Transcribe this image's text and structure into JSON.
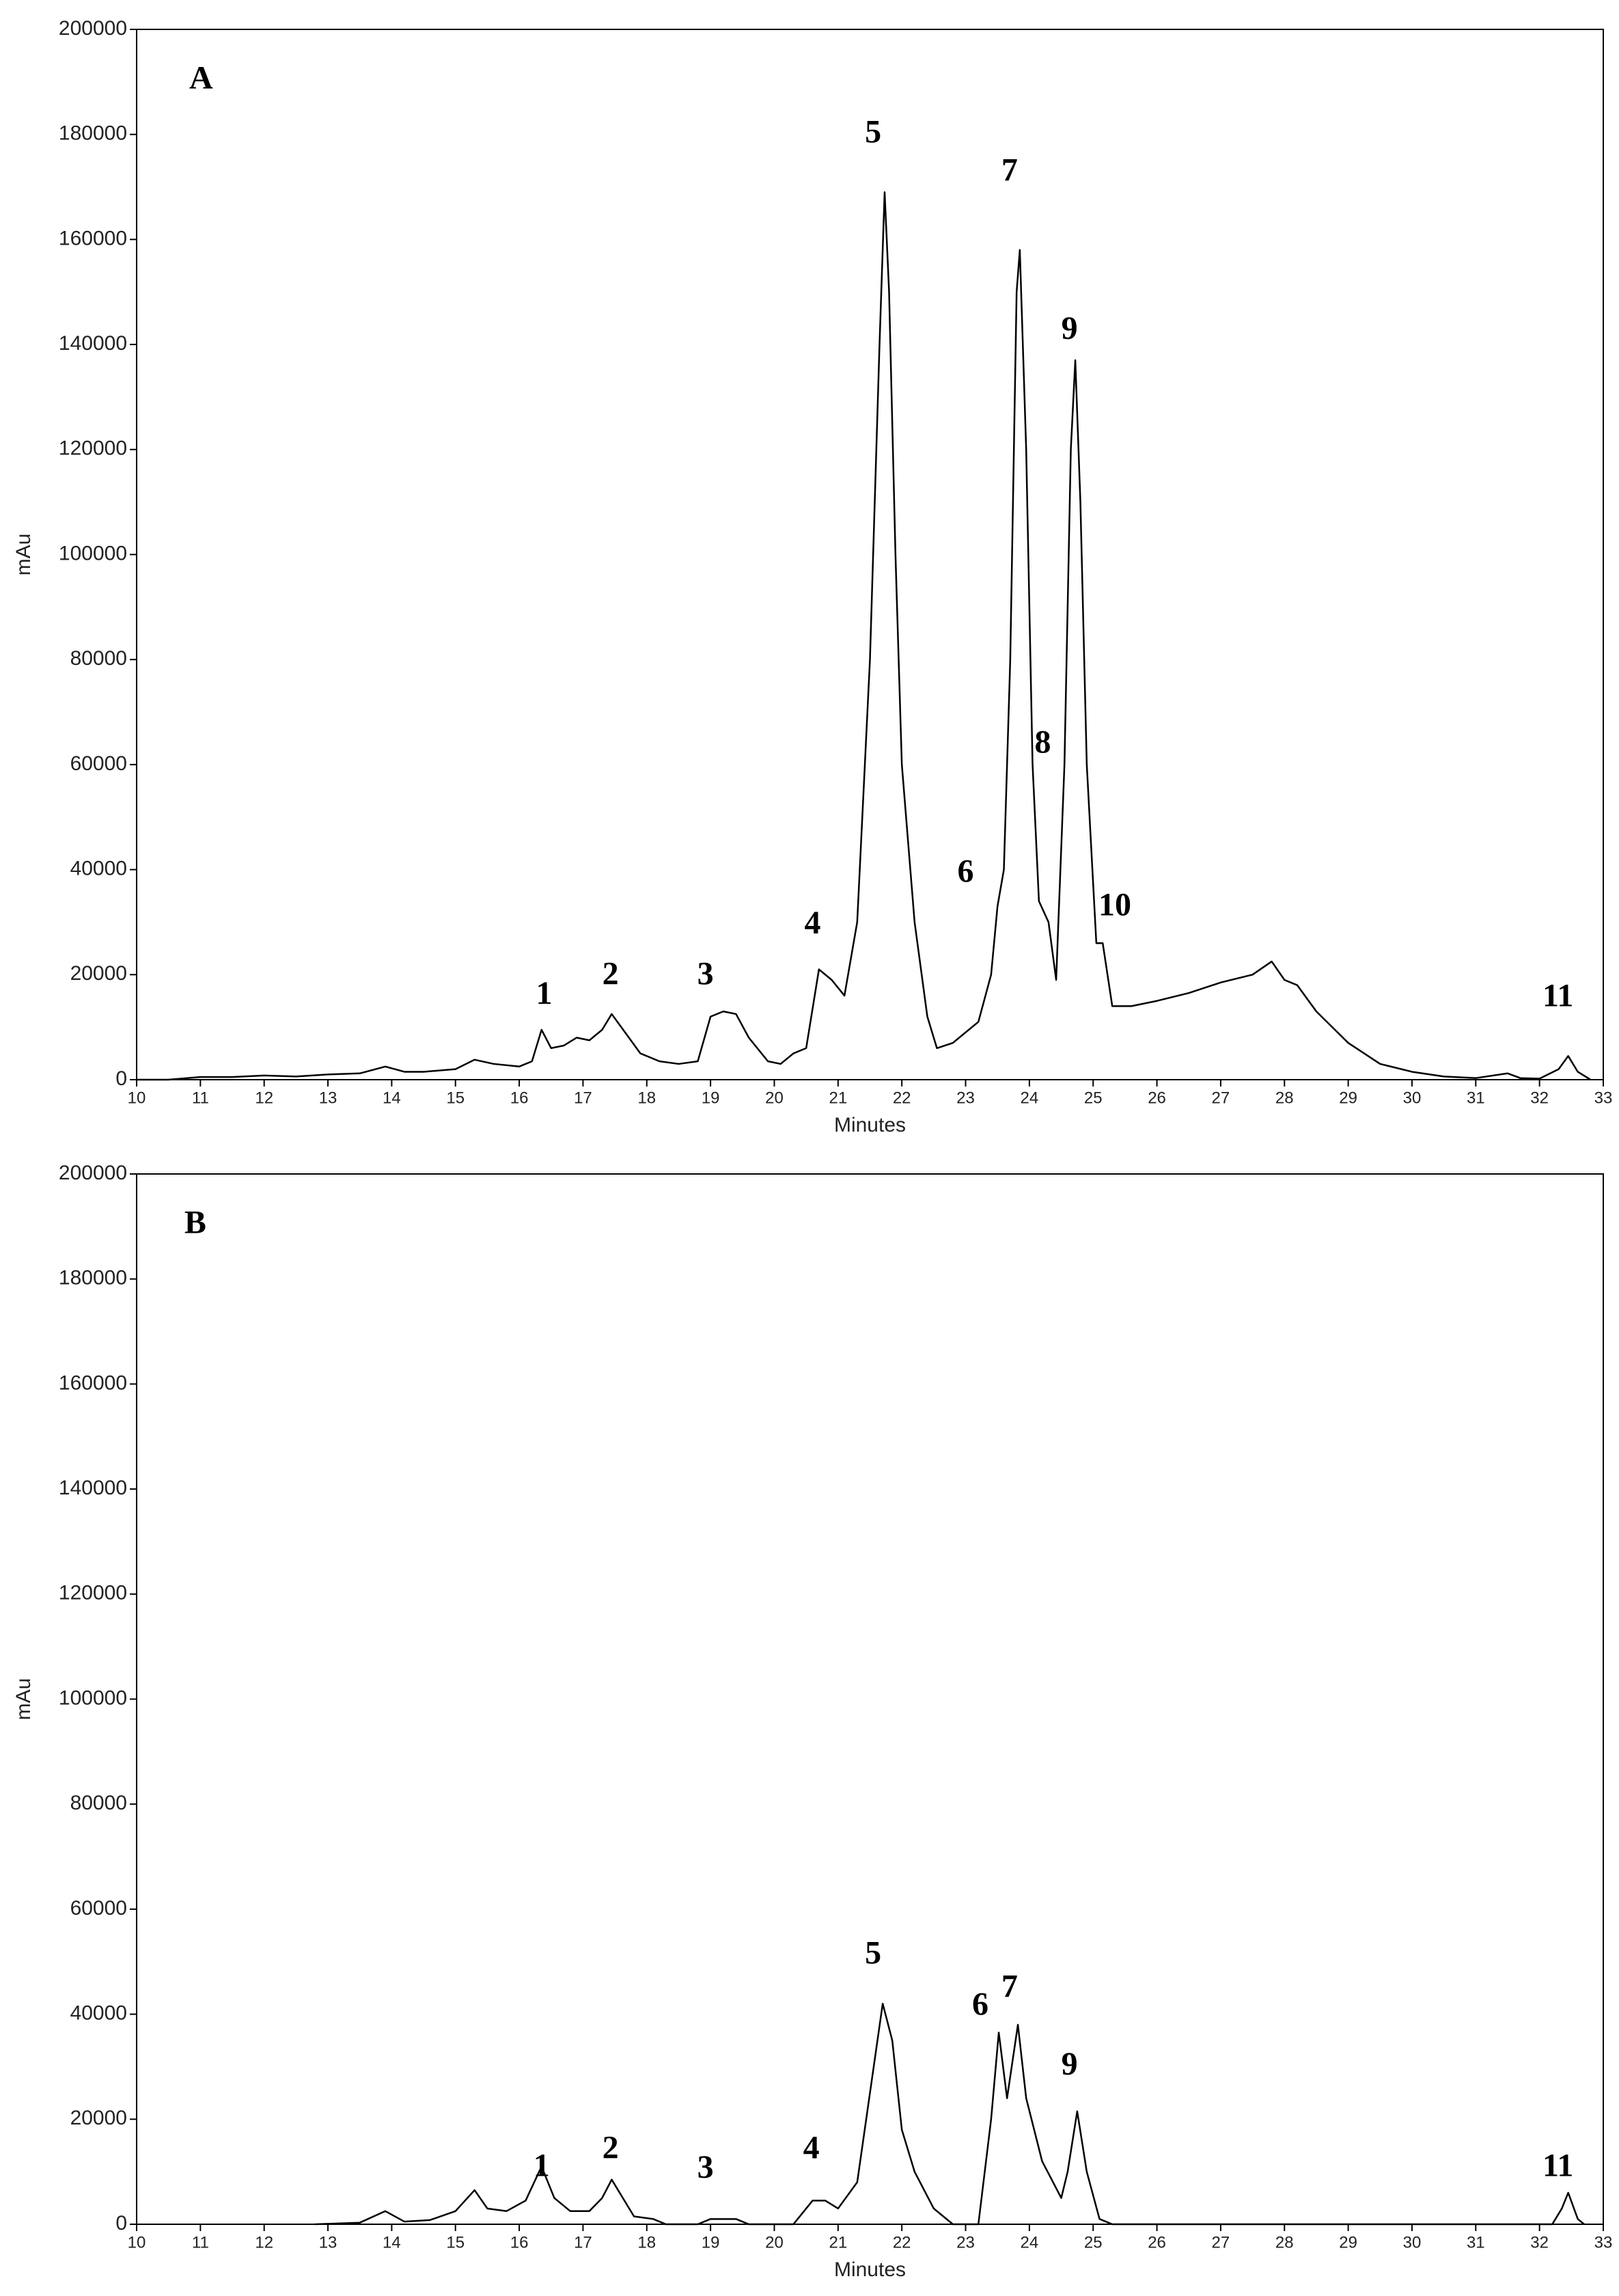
{
  "chart_data": [
    {
      "type": "line",
      "xlabel": "Minutes",
      "ylabel": "mAu",
      "xlim": [
        10,
        33
      ],
      "ylim": [
        0,
        200000
      ],
      "xticks": [
        10,
        11,
        12,
        13,
        14,
        15,
        16,
        17,
        18,
        19,
        20,
        21,
        22,
        23,
        24,
        25,
        26,
        27,
        28,
        29,
        30,
        31,
        32,
        33
      ],
      "yticks": [
        0,
        20000,
        40000,
        60000,
        80000,
        100000,
        120000,
        140000,
        160000,
        180000,
        200000
      ],
      "color": "#000000",
      "x": [
        10,
        10.5,
        11,
        11.5,
        12,
        12.5,
        13,
        13.5,
        13.9,
        14.2,
        14.5,
        15,
        15.3,
        15.6,
        16,
        16.2,
        16.35,
        16.5,
        16.7,
        16.9,
        17.1,
        17.3,
        17.45,
        17.6,
        17.9,
        18.2,
        18.5,
        18.8,
        19,
        19.2,
        19.4,
        19.6,
        19.9,
        20.1,
        20.3,
        20.5,
        20.7,
        20.9,
        21.1,
        21.3,
        21.5,
        21.65,
        21.73,
        21.8,
        21.9,
        22,
        22.2,
        22.4,
        22.55,
        22.8,
        23.2,
        23.4,
        23.5,
        23.6,
        23.7,
        23.8,
        23.85,
        23.95,
        24.05,
        24.15,
        24.3,
        24.42,
        24.55,
        24.65,
        24.72,
        24.8,
        24.9,
        25.05,
        25.15,
        25.3,
        25.6,
        26,
        26.5,
        27,
        27.5,
        27.8,
        28,
        28.2,
        28.5,
        29,
        29.5,
        30,
        30.5,
        31,
        31.5,
        31.7,
        32,
        32.3,
        32.45,
        32.6,
        32.8
      ],
      "values": [
        0,
        0,
        500,
        500,
        800,
        600,
        1000,
        1200,
        2500,
        1500,
        1500,
        2000,
        3800,
        3000,
        2500,
        3500,
        9500,
        6000,
        6500,
        8000,
        7500,
        9500,
        12500,
        10000,
        5000,
        3500,
        3000,
        3500,
        12000,
        13000,
        12500,
        8000,
        3500,
        3000,
        5000,
        6000,
        21000,
        19000,
        16000,
        30000,
        80000,
        140000,
        169000,
        150000,
        100000,
        60000,
        30000,
        12000,
        6000,
        7000,
        11000,
        20000,
        33000,
        40000,
        80000,
        150000,
        158000,
        120000,
        60000,
        34000,
        30000,
        19000,
        60000,
        120000,
        137000,
        110000,
        60000,
        26000,
        26000,
        14000,
        14000,
        15000,
        16500,
        18500,
        20000,
        22500,
        19000,
        18000,
        13000,
        7000,
        3000,
        1500,
        600,
        300,
        1200,
        300,
        200,
        2000,
        4500,
        1500,
        0
      ],
      "annotations": [
        {
          "text": "A",
          "x": 11.01,
          "y": 190200
        },
        {
          "text": "1",
          "x": 16.39,
          "y": 15900
        },
        {
          "text": "2",
          "x": 17.43,
          "y": 19600
        },
        {
          "text": "3",
          "x": 18.92,
          "y": 19600
        },
        {
          "text": "4",
          "x": 20.6,
          "y": 29300
        },
        {
          "text": "5",
          "x": 21.55,
          "y": 179900
        },
        {
          "text": "6",
          "x": 23.0,
          "y": 39100
        },
        {
          "text": "7",
          "x": 23.69,
          "y": 172600
        },
        {
          "text": "8",
          "x": 24.21,
          "y": 63700
        },
        {
          "text": "9",
          "x": 24.63,
          "y": 142500
        },
        {
          "text": "10",
          "x": 25.34,
          "y": 32700
        },
        {
          "text": "11",
          "x": 32.29,
          "y": 15400
        }
      ]
    },
    {
      "type": "line",
      "xlabel": "Minutes",
      "ylabel": "mAu",
      "xlim": [
        10,
        33
      ],
      "ylim": [
        0,
        200000
      ],
      "xticks": [
        10,
        11,
        12,
        13,
        14,
        15,
        16,
        17,
        18,
        19,
        20,
        21,
        22,
        23,
        24,
        25,
        26,
        27,
        28,
        29,
        30,
        31,
        32,
        33
      ],
      "yticks": [
        0,
        20000,
        40000,
        60000,
        80000,
        100000,
        120000,
        140000,
        160000,
        180000,
        200000
      ],
      "color": "#000000",
      "x": [
        12.8,
        13.5,
        13.9,
        14.2,
        14.6,
        15,
        15.3,
        15.5,
        15.8,
        16.1,
        16.35,
        16.55,
        16.8,
        17.1,
        17.3,
        17.45,
        17.6,
        17.8,
        18.1,
        18.3,
        18.8,
        19,
        19.4,
        19.6,
        20.3,
        20.6,
        20.8,
        21,
        21.3,
        21.5,
        21.7,
        21.85,
        22,
        22.2,
        22.5,
        22.8,
        23.2,
        23.4,
        23.52,
        23.65,
        23.82,
        23.95,
        24.2,
        24.5,
        24.6,
        24.75,
        24.9,
        25.1,
        25.3,
        32.2,
        32.35,
        32.45,
        32.6,
        32.7
      ],
      "values": [
        0,
        300,
        2500,
        500,
        800,
        2500,
        6500,
        3000,
        2500,
        4500,
        11000,
        5000,
        2500,
        2500,
        5000,
        8500,
        5500,
        1500,
        1000,
        0,
        0,
        1000,
        1000,
        0,
        0,
        4500,
        4500,
        3000,
        8000,
        25000,
        42000,
        35000,
        18000,
        10000,
        3000,
        0,
        0,
        20000,
        36500,
        24000,
        38000,
        24000,
        12000,
        5000,
        10000,
        21500,
        10000,
        1000,
        0,
        0,
        3000,
        6000,
        1000,
        0
      ],
      "annotations": [
        {
          "text": "B",
          "x": 10.92,
          "y": 190200
        },
        {
          "text": "1",
          "x": 16.35,
          "y": 10600
        },
        {
          "text": "2",
          "x": 17.43,
          "y": 14000
        },
        {
          "text": "3",
          "x": 18.92,
          "y": 10300
        },
        {
          "text": "4",
          "x": 20.58,
          "y": 14000
        },
        {
          "text": "5",
          "x": 21.55,
          "y": 51100
        },
        {
          "text": "6",
          "x": 23.23,
          "y": 41300
        },
        {
          "text": "7",
          "x": 23.69,
          "y": 44700
        },
        {
          "text": "9",
          "x": 24.63,
          "y": 29900
        },
        {
          "text": "11",
          "x": 32.29,
          "y": 10600
        }
      ]
    }
  ]
}
